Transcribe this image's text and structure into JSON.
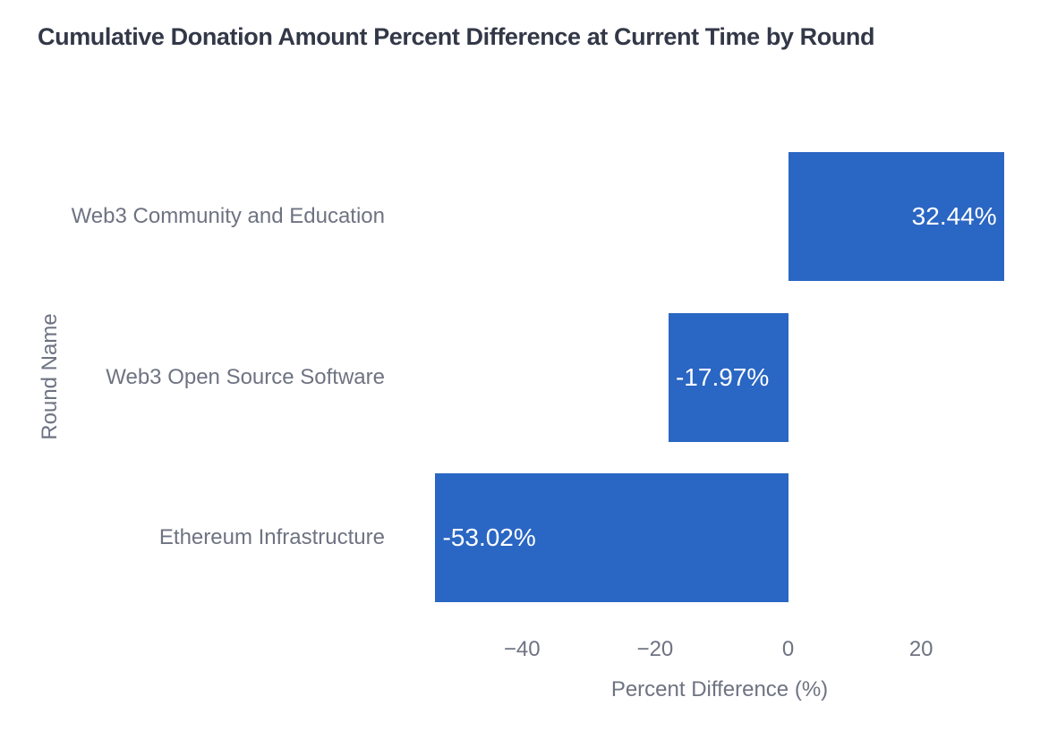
{
  "colors": {
    "bar": "#2a66c3",
    "title_text": "#333848",
    "axis_text": "#6e7382",
    "bar_label_text": "#ffffff",
    "background": "#ffffff"
  },
  "chart_data": {
    "type": "bar",
    "orientation": "horizontal",
    "title": "Cumulative Donation Amount Percent Difference at Current Time by Round",
    "xlabel": "Percent Difference (%)",
    "ylabel": "Round Name",
    "categories": [
      "Web3 Community and Education",
      "Web3 Open Source Software",
      "Ethereum Infrastructure"
    ],
    "values": [
      32.44,
      -17.97,
      -53.02
    ],
    "bar_labels": [
      "32.44%",
      "-17.97%",
      "-53.02%"
    ],
    "bar_color": "#2a66c3",
    "xlim": [
      -58.2,
      37.6
    ],
    "xticks": {
      "values": [
        -40,
        -20,
        0,
        20
      ],
      "labels": [
        "−40",
        "−20",
        "0",
        "20"
      ]
    },
    "grid": false,
    "legend": false,
    "category_order_note": "listed top-to-bottom as rendered"
  }
}
